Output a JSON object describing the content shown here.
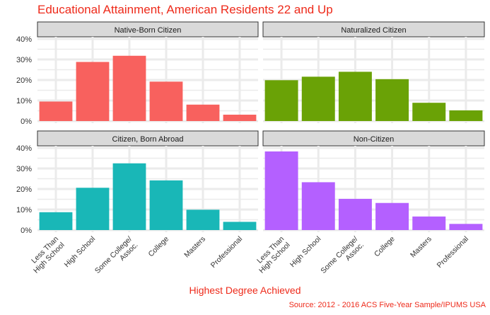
{
  "title": "Educational Attainment, American Residents 22 and Up",
  "xlabel": "Highest Degree Achieved",
  "caption": "Source: 2012 - 2016 ACS Five-Year Sample/IPUMS USA",
  "chart_data": {
    "type": "bar",
    "layout": "facet 2x2",
    "categories": [
      "Less Than\nHigh School",
      "High School",
      "Some College/\nAssoc.",
      "College",
      "Masters",
      "Professional"
    ],
    "yticks": [
      "0%",
      "10%",
      "20%",
      "30%",
      "40%"
    ],
    "ylim": [
      0,
      40
    ],
    "grid": true,
    "panels": [
      {
        "name": "Native-Born Citizen",
        "color": "#f8615e",
        "values": [
          9.5,
          28.8,
          31.8,
          19.2,
          8.0,
          3.1
        ]
      },
      {
        "name": "Naturalized Citizen",
        "color": "#6aa206",
        "values": [
          19.9,
          21.6,
          24.0,
          20.4,
          8.9,
          5.2
        ]
      },
      {
        "name": "Citizen, Born Abroad",
        "color": "#19b7b7",
        "values": [
          8.7,
          20.6,
          32.5,
          24.2,
          9.9,
          4.0
        ]
      },
      {
        "name": "Non-Citizen",
        "color": "#b460ff",
        "values": [
          38.3,
          23.3,
          15.2,
          13.2,
          6.6,
          3.0
        ]
      }
    ]
  }
}
